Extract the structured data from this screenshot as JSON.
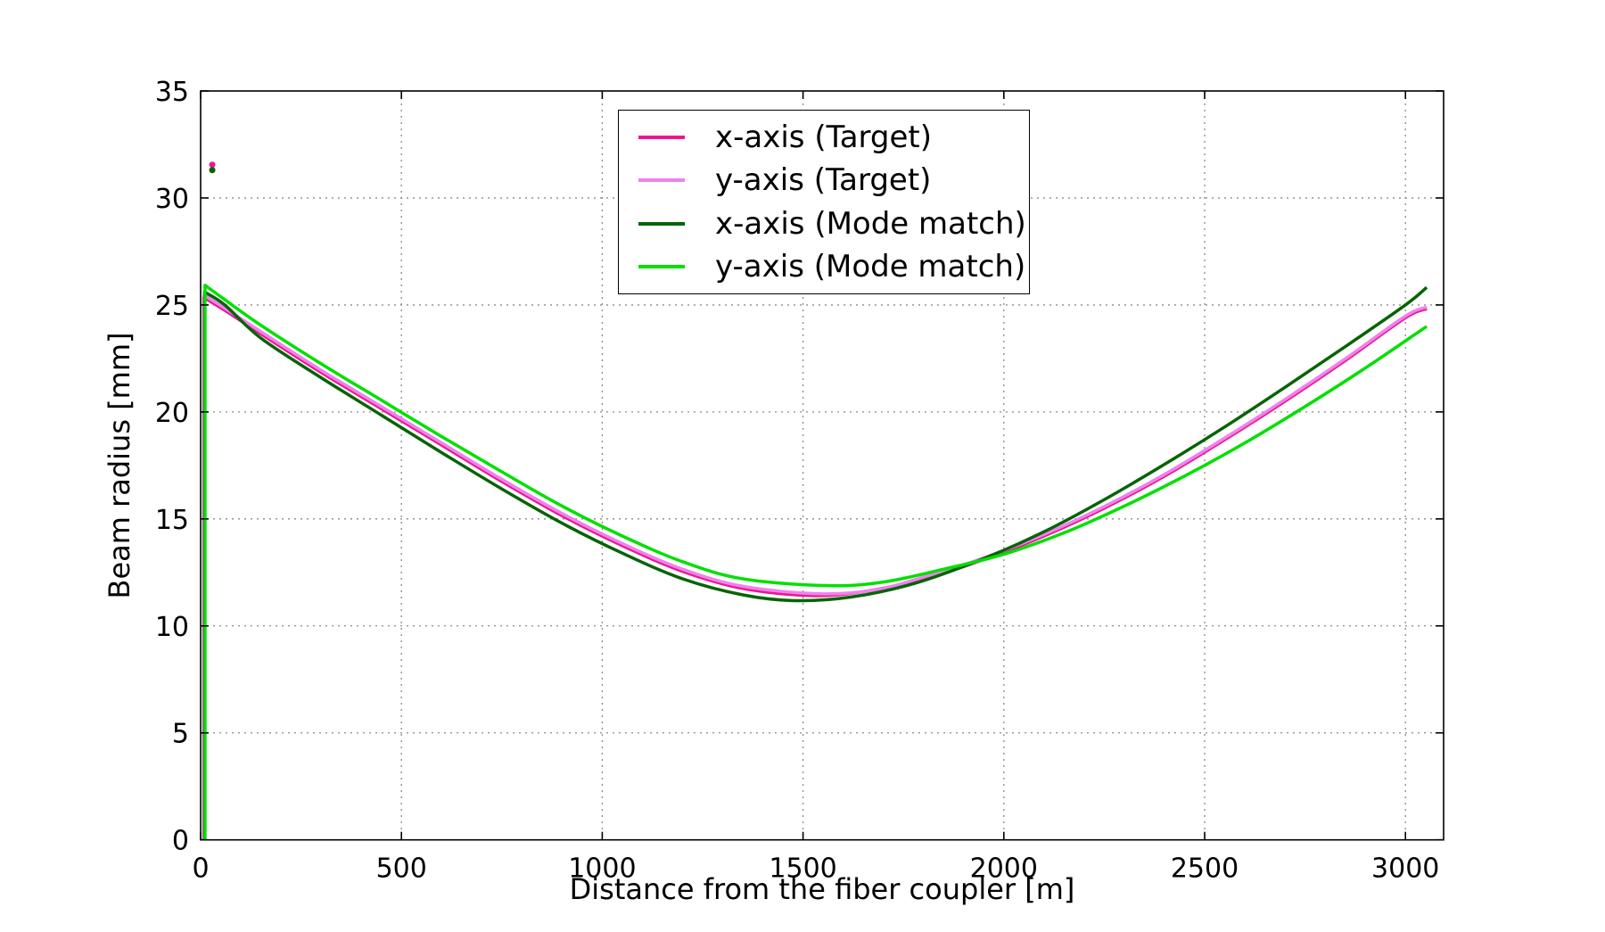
{
  "figure": {
    "background": "#ffffff",
    "axis_color": "#000000",
    "grid_color": "#8a8a8a"
  },
  "chart_data": {
    "type": "line",
    "title": "",
    "xlabel": "Distance from the fiber coupler [m]",
    "ylabel": "Beam radius [mm]",
    "xlim": [
      0,
      3095
    ],
    "ylim": [
      0,
      35
    ],
    "xticks": [
      0,
      500,
      1000,
      1500,
      2000,
      2500,
      3000
    ],
    "yticks": [
      0,
      5,
      10,
      15,
      20,
      25,
      30,
      35
    ],
    "grid": "dotted",
    "legend_position": "upper center",
    "series": [
      {
        "name": "x-axis (Target)",
        "color": "#ed1690",
        "points": [
          [
            8,
            0
          ],
          [
            8,
            25.35
          ],
          [
            60,
            24.75
          ],
          [
            150,
            23.65
          ],
          [
            300,
            21.85
          ],
          [
            450,
            20.15
          ],
          [
            600,
            18.45
          ],
          [
            750,
            16.75
          ],
          [
            900,
            15.15
          ],
          [
            1050,
            13.75
          ],
          [
            1200,
            12.55
          ],
          [
            1350,
            11.75
          ],
          [
            1520,
            11.42
          ],
          [
            1650,
            11.6
          ],
          [
            1800,
            12.2
          ],
          [
            1950,
            13.1
          ],
          [
            2100,
            14.2
          ],
          [
            2250,
            15.5
          ],
          [
            2400,
            17.0
          ],
          [
            2550,
            18.7
          ],
          [
            2700,
            20.5
          ],
          [
            2850,
            22.4
          ],
          [
            3000,
            24.4
          ],
          [
            3053,
            24.82
          ]
        ]
      },
      {
        "name": "y-axis (Target)",
        "color": "#ee82ee",
        "points": [
          [
            9,
            0
          ],
          [
            9,
            25.45
          ],
          [
            60,
            24.85
          ],
          [
            150,
            23.75
          ],
          [
            300,
            21.95
          ],
          [
            450,
            20.25
          ],
          [
            600,
            18.55
          ],
          [
            750,
            16.85
          ],
          [
            900,
            15.25
          ],
          [
            1050,
            13.85
          ],
          [
            1200,
            12.65
          ],
          [
            1350,
            11.85
          ],
          [
            1540,
            11.5
          ],
          [
            1680,
            11.68
          ],
          [
            1800,
            12.28
          ],
          [
            1950,
            13.18
          ],
          [
            2100,
            14.28
          ],
          [
            2250,
            15.58
          ],
          [
            2400,
            17.08
          ],
          [
            2550,
            18.78
          ],
          [
            2700,
            20.58
          ],
          [
            2850,
            22.48
          ],
          [
            3000,
            24.48
          ],
          [
            3053,
            24.9
          ]
        ]
      },
      {
        "name": "x-axis (Mode match)",
        "color": "#056405",
        "points": [
          [
            10,
            0
          ],
          [
            10,
            25.6
          ],
          [
            60,
            25.0
          ],
          [
            150,
            23.45
          ],
          [
            300,
            21.6
          ],
          [
            450,
            19.85
          ],
          [
            600,
            18.1
          ],
          [
            750,
            16.4
          ],
          [
            900,
            14.8
          ],
          [
            1050,
            13.4
          ],
          [
            1200,
            12.2
          ],
          [
            1350,
            11.45
          ],
          [
            1480,
            11.18
          ],
          [
            1620,
            11.35
          ],
          [
            1780,
            12.0
          ],
          [
            1950,
            13.15
          ],
          [
            2100,
            14.4
          ],
          [
            2250,
            15.9
          ],
          [
            2400,
            17.55
          ],
          [
            2550,
            19.3
          ],
          [
            2700,
            21.15
          ],
          [
            2850,
            23.05
          ],
          [
            3000,
            25.0
          ],
          [
            3053,
            25.82
          ]
        ]
      },
      {
        "name": "y-axis (Mode match)",
        "color": "#00e000",
        "points": [
          [
            11,
            0
          ],
          [
            11,
            25.92
          ],
          [
            60,
            25.25
          ],
          [
            150,
            24.05
          ],
          [
            300,
            22.25
          ],
          [
            450,
            20.55
          ],
          [
            600,
            18.85
          ],
          [
            750,
            17.2
          ],
          [
            900,
            15.6
          ],
          [
            1050,
            14.2
          ],
          [
            1200,
            13.0
          ],
          [
            1350,
            12.2
          ],
          [
            1560,
            11.88
          ],
          [
            1700,
            12.05
          ],
          [
            1850,
            12.65
          ],
          [
            2000,
            13.35
          ],
          [
            2150,
            14.35
          ],
          [
            2300,
            15.6
          ],
          [
            2450,
            17.0
          ],
          [
            2600,
            18.55
          ],
          [
            2750,
            20.25
          ],
          [
            2900,
            22.05
          ],
          [
            3053,
            24.0
          ]
        ]
      }
    ],
    "markers": [
      {
        "x": 29,
        "y": 31.55,
        "color": "#ed1690"
      },
      {
        "x": 29,
        "y": 31.3,
        "color": "#056405"
      }
    ]
  }
}
